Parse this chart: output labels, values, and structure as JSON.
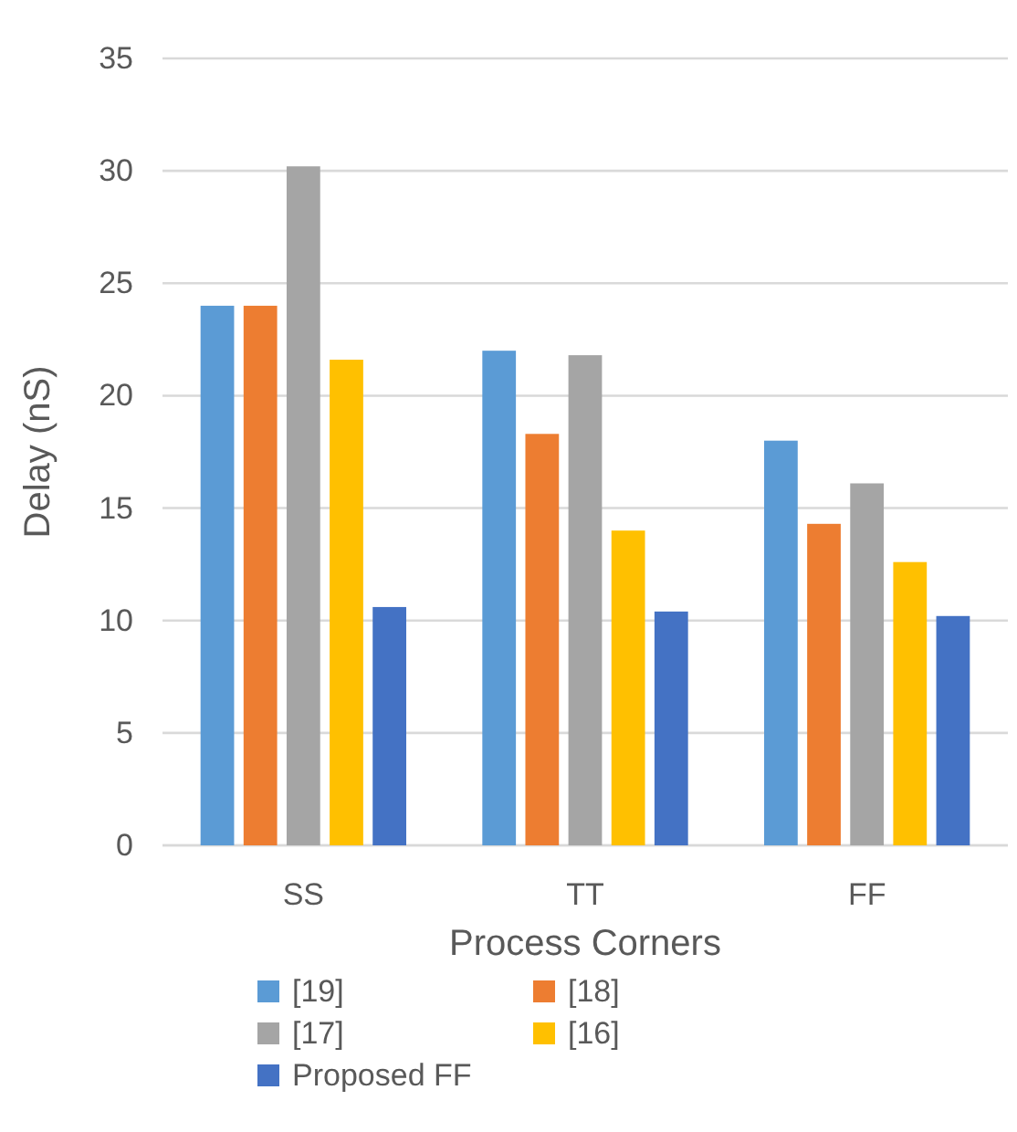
{
  "chart_data": {
    "type": "bar",
    "xlabel": "Process Corners",
    "ylabel": "Delay (nS)",
    "categories": [
      "SS",
      "TT",
      "FF"
    ],
    "series": [
      {
        "name": "[19]",
        "color": "#5b9bd5",
        "values": [
          24.0,
          22.0,
          18.0
        ]
      },
      {
        "name": "[18]",
        "color": "#ed7d31",
        "values": [
          24.0,
          18.3,
          14.3
        ]
      },
      {
        "name": "[17]",
        "color": "#a5a5a5",
        "values": [
          30.2,
          21.8,
          16.1
        ]
      },
      {
        "name": "[16]",
        "color": "#ffc000",
        "values": [
          21.6,
          14.0,
          12.6
        ]
      },
      {
        "name": "Proposed FF",
        "color": "#4472c4",
        "values": [
          10.6,
          10.4,
          10.2
        ]
      }
    ],
    "ylim": [
      0,
      35
    ],
    "yticks": [
      0,
      5,
      10,
      15,
      20,
      25,
      30,
      35
    ],
    "grid": "y",
    "legend": "bottom"
  }
}
